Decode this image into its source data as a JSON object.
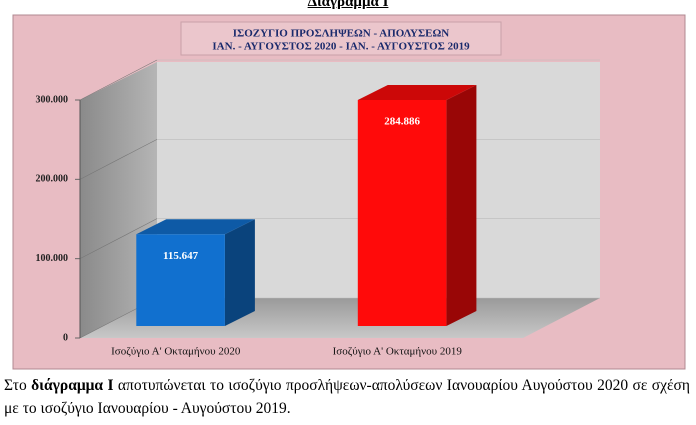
{
  "heading": "Διάγραμμα Ι",
  "chart_data": {
    "type": "bar3d",
    "title": [
      "ΙΣΟΖΥΓΙΟ  ΠΡΟΣΛΗΨΕΩΝ  -  ΑΠΟΛΥΣΕΩΝ",
      "ΙΑΝ. - ΑΥΓΟΥΣΤΟΣ 2020  -  ΙΑΝ. - ΑΥΓΟΥΣΤΟΣ 2019"
    ],
    "categories": [
      "Ισοζύγιο Α' Οκταμήνου 2020",
      "Ισοζύγιο Α' Οκταμήνου 2019"
    ],
    "values": [
      115647,
      284886
    ],
    "value_labels": [
      "115.647",
      "284.886"
    ],
    "colors": [
      "#1170cf",
      "#ff0a0a"
    ],
    "ylim": [
      0,
      300000
    ],
    "yticks": [
      0,
      {
        "value": 100000,
        "label": "100.000"
      },
      {
        "value": 200000,
        "label": "200.000"
      },
      {
        "value": 300000,
        "label": "300.000"
      }
    ],
    "grid": true
  },
  "paragraph": [
    "Στο ",
    "διάγραμμα Ι",
    " αποτυπώνεται το ισοζύγιο προσλήψεων-απολύσεων Ιανουαρίου Αυγούστου 2020  σε σχέση με το ισοζύγιο Ιανουαρίου - Αυγούστου 2019."
  ]
}
